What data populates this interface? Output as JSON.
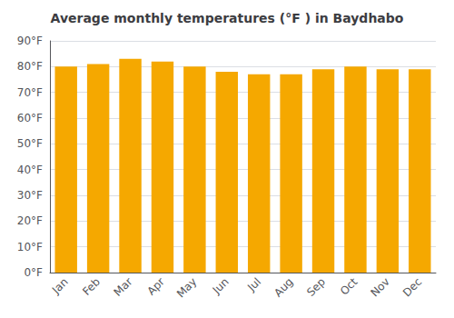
{
  "chart_data": {
    "type": "bar",
    "title": "Average monthly temperatures (°F ) in Baydhabo",
    "categories": [
      "Jan",
      "Feb",
      "Mar",
      "Apr",
      "May",
      "Jun",
      "Jul",
      "Aug",
      "Sep",
      "Oct",
      "Nov",
      "Dec"
    ],
    "values": [
      80,
      81,
      83,
      82,
      80,
      78,
      77,
      77,
      79,
      80,
      79,
      79
    ],
    "color": "#F5A800",
    "ylim": [
      0,
      90
    ],
    "yticks": [
      {
        "value": 0,
        "label": "0°F"
      },
      {
        "value": 10,
        "label": "10°F"
      },
      {
        "value": 20,
        "label": "20°F"
      },
      {
        "value": 30,
        "label": "30°F"
      },
      {
        "value": 40,
        "label": "40°F"
      },
      {
        "value": 50,
        "label": "50°F"
      },
      {
        "value": 60,
        "label": "60°F"
      },
      {
        "value": 70,
        "label": "70°F"
      },
      {
        "value": 80,
        "label": "80°F"
      },
      {
        "value": 90,
        "label": "90°F"
      }
    ],
    "grid": true
  }
}
